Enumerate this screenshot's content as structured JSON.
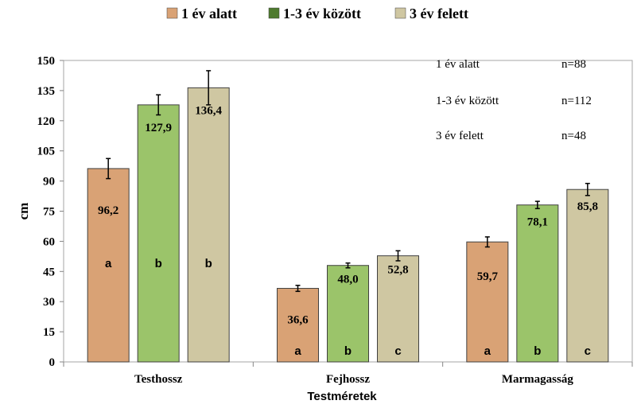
{
  "chart_data": {
    "type": "bar",
    "xlabel": "Testméretek",
    "ylabel": "cm",
    "ylim": [
      0,
      150
    ],
    "yticks": [
      0,
      15,
      30,
      45,
      60,
      75,
      90,
      105,
      120,
      135,
      150
    ],
    "grid": false,
    "legend_position": "top",
    "categories": [
      "Testhossz",
      "Fejhossz",
      "Marmagasság"
    ],
    "series": [
      {
        "name": "1 év alatt",
        "color": "#D9A275",
        "values": [
          96.2,
          36.6,
          59.7
        ],
        "value_labels": [
          "96,2",
          "36,6",
          "59,7"
        ],
        "errors": [
          5.0,
          1.5,
          2.5
        ],
        "letters": [
          "a",
          "a",
          "a"
        ]
      },
      {
        "name": "1-3 év között",
        "color": "#9BC46A",
        "values": [
          127.9,
          48.0,
          78.1
        ],
        "value_labels": [
          "127,9",
          "48,0",
          "78,1"
        ],
        "errors": [
          5.0,
          1.2,
          1.8
        ],
        "letters": [
          "b",
          "b",
          "b"
        ]
      },
      {
        "name": "3 év felett",
        "color": "#CFC7A2",
        "values": [
          136.4,
          52.8,
          85.8
        ],
        "value_labels": [
          "136,4",
          "52,8",
          "85,8"
        ],
        "errors": [
          8.5,
          2.5,
          3.0
        ],
        "letters": [
          "b",
          "c",
          "c"
        ]
      }
    ],
    "legend_swatch_colors": [
      "#D9A275",
      "#4E7A2E",
      "#CFC7A2"
    ],
    "annotations": [
      {
        "label": "1 év alatt",
        "n": "n=88"
      },
      {
        "label": "1-3 év között",
        "n": "n=112"
      },
      {
        "label": "3 év felett",
        "n": "n=48"
      }
    ]
  }
}
